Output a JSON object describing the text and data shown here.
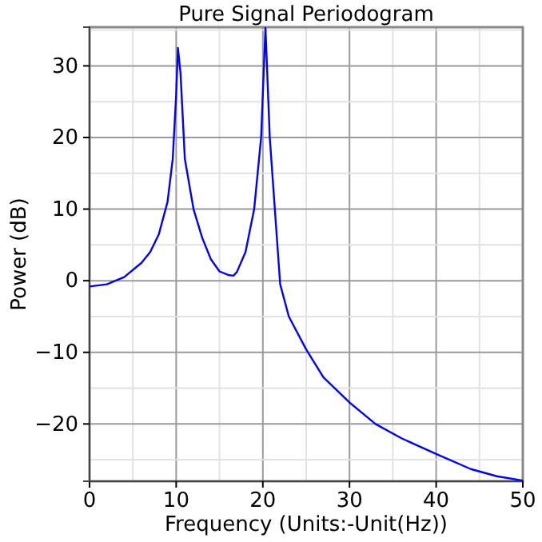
{
  "chart_data": {
    "type": "line",
    "title": "Pure Signal Periodogram",
    "xlabel": "Frequency (Units:-Unit(Hz))",
    "ylabel": "Power (dB)",
    "x": [
      0,
      2,
      4,
      6,
      7,
      8,
      9,
      9.6,
      10,
      10.2,
      10.5,
      11,
      12,
      13,
      14,
      15,
      16,
      16.6,
      17,
      18,
      19,
      19.8,
      20.3,
      20.8,
      21.5,
      22,
      23,
      25,
      27,
      30,
      33,
      36,
      40,
      44,
      47,
      50
    ],
    "series": [
      {
        "color": "#0000ff",
        "values": [
          -0.8,
          -0.5,
          0.5,
          2.5,
          4,
          6.5,
          11,
          17,
          26,
          32.5,
          29,
          17,
          10,
          6,
          3,
          1.3,
          0.8,
          0.7,
          1.2,
          4,
          10,
          20,
          35.3,
          20,
          8,
          -0.5,
          -5,
          -9.6,
          -13.5,
          -17,
          -20,
          -22,
          -24.2,
          -26.3,
          -27.3,
          -27.9
        ]
      }
    ],
    "xlim": [
      0,
      50
    ],
    "xticks": [
      0,
      10,
      20,
      30,
      40,
      50
    ],
    "ylim": [
      -28,
      35.4
    ],
    "yticks": [
      -20,
      -10,
      0,
      10,
      20,
      30
    ],
    "grid": true,
    "marker": "none",
    "line_style": "solid"
  }
}
